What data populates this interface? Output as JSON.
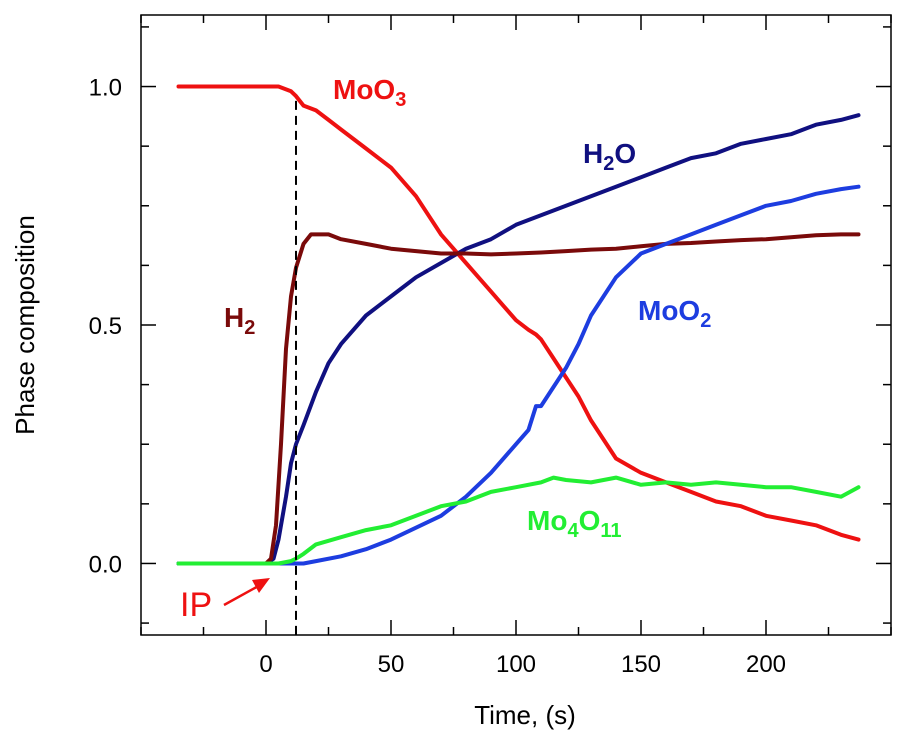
{
  "chart_data": {
    "type": "line",
    "xlabel": "Time, (s)",
    "ylabel": "Phase composition",
    "xlim": [
      -50,
      250
    ],
    "ylim": [
      -0.15,
      1.15
    ],
    "x_ticks": [
      "0",
      "50",
      "100",
      "150",
      "200"
    ],
    "y_ticks": [
      "0.0",
      "0.5",
      "1.0"
    ],
    "x_tick_values": [
      0,
      50,
      100,
      150,
      200
    ],
    "y_tick_values": [
      0.0,
      0.5,
      1.0
    ],
    "x_minor_step": 25,
    "y_minor_step": 0.125,
    "grid": false,
    "series": [
      {
        "key": "moo3",
        "label_parts": [
          "MoO",
          "3",
          ""
        ],
        "color": "#ee1111",
        "x": [
          -35,
          -20,
          0,
          5,
          10,
          12,
          15,
          20,
          25,
          30,
          40,
          50,
          60,
          65,
          70,
          75,
          80,
          85,
          90,
          95,
          100,
          105,
          108,
          110,
          115,
          120,
          125,
          130,
          140,
          150,
          160,
          170,
          180,
          190,
          200,
          210,
          220,
          230,
          237
        ],
        "y": [
          1.0,
          1.0,
          1.0,
          1.0,
          0.99,
          0.98,
          0.96,
          0.95,
          0.93,
          0.91,
          0.87,
          0.83,
          0.77,
          0.73,
          0.69,
          0.66,
          0.63,
          0.6,
          0.57,
          0.54,
          0.51,
          0.49,
          0.48,
          0.47,
          0.43,
          0.39,
          0.35,
          0.3,
          0.22,
          0.19,
          0.17,
          0.15,
          0.13,
          0.12,
          0.1,
          0.09,
          0.08,
          0.06,
          0.05
        ]
      },
      {
        "key": "h2o",
        "label_parts": [
          "H",
          "2",
          "O"
        ],
        "color": "#101080",
        "x": [
          -35,
          0,
          3,
          5,
          8,
          10,
          12,
          15,
          20,
          25,
          30,
          40,
          50,
          60,
          70,
          80,
          90,
          100,
          110,
          120,
          130,
          140,
          150,
          160,
          170,
          180,
          190,
          200,
          210,
          220,
          230,
          237
        ],
        "y": [
          0.0,
          0.0,
          0.01,
          0.05,
          0.14,
          0.21,
          0.25,
          0.29,
          0.36,
          0.42,
          0.46,
          0.52,
          0.56,
          0.6,
          0.63,
          0.66,
          0.68,
          0.71,
          0.73,
          0.75,
          0.77,
          0.79,
          0.81,
          0.83,
          0.85,
          0.86,
          0.88,
          0.89,
          0.9,
          0.92,
          0.93,
          0.94
        ]
      },
      {
        "key": "h2",
        "label_parts": [
          "H",
          "2",
          ""
        ],
        "color": "#7a0a0a",
        "x": [
          -35,
          0,
          2,
          4,
          6,
          8,
          10,
          12,
          15,
          18,
          20,
          25,
          30,
          40,
          50,
          60,
          70,
          80,
          90,
          100,
          110,
          120,
          130,
          140,
          150,
          160,
          170,
          180,
          190,
          200,
          210,
          220,
          230,
          237
        ],
        "y": [
          0.0,
          0.0,
          0.01,
          0.08,
          0.25,
          0.45,
          0.56,
          0.62,
          0.67,
          0.69,
          0.69,
          0.69,
          0.68,
          0.67,
          0.66,
          0.655,
          0.65,
          0.65,
          0.648,
          0.65,
          0.652,
          0.655,
          0.658,
          0.66,
          0.665,
          0.67,
          0.672,
          0.675,
          0.678,
          0.68,
          0.684,
          0.688,
          0.69,
          0.69
        ]
      },
      {
        "key": "moo2",
        "label_parts": [
          "MoO",
          "2",
          ""
        ],
        "color": "#1d3de0",
        "x": [
          -35,
          0,
          10,
          15,
          20,
          30,
          40,
          50,
          60,
          70,
          80,
          90,
          100,
          105,
          108,
          110,
          115,
          120,
          125,
          130,
          140,
          150,
          160,
          170,
          180,
          190,
          200,
          210,
          220,
          230,
          237
        ],
        "y": [
          0.0,
          0.0,
          0.0,
          0.0,
          0.005,
          0.015,
          0.03,
          0.05,
          0.075,
          0.1,
          0.14,
          0.19,
          0.25,
          0.28,
          0.33,
          0.33,
          0.37,
          0.41,
          0.46,
          0.52,
          0.6,
          0.65,
          0.67,
          0.69,
          0.71,
          0.73,
          0.75,
          0.76,
          0.775,
          0.785,
          0.79
        ]
      },
      {
        "key": "mo4o11",
        "label_parts": [
          "Mo",
          "4",
          "O",
          "11",
          ""
        ],
        "color": "#22ee33",
        "x": [
          -35,
          0,
          5,
          10,
          12,
          15,
          20,
          30,
          40,
          50,
          60,
          70,
          80,
          90,
          100,
          110,
          115,
          120,
          130,
          140,
          150,
          160,
          170,
          180,
          190,
          200,
          210,
          220,
          230,
          237
        ],
        "y": [
          0.0,
          0.0,
          0.0,
          0.005,
          0.01,
          0.02,
          0.04,
          0.055,
          0.07,
          0.08,
          0.1,
          0.12,
          0.13,
          0.15,
          0.16,
          0.17,
          0.18,
          0.175,
          0.17,
          0.18,
          0.165,
          0.17,
          0.165,
          0.17,
          0.165,
          0.16,
          0.16,
          0.15,
          0.14,
          0.16
        ]
      }
    ],
    "reference_line": {
      "x": 12,
      "style": "dashed",
      "color": "#000000"
    },
    "annotations": [
      {
        "key": "ip",
        "text": "IP",
        "color": "#ee1111",
        "points_to": [
          12,
          0.0
        ]
      }
    ]
  }
}
